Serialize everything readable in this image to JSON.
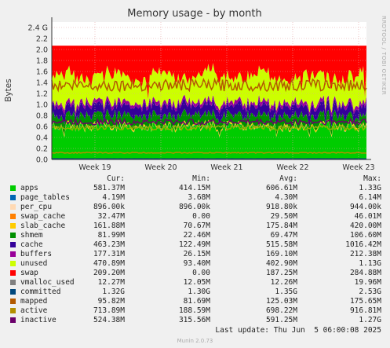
{
  "chart_data": {
    "type": "area",
    "title": "Memory usage - by month",
    "ylabel": "Bytes",
    "side_label": "RRDTOOL / TOBI OETIKER",
    "x_ticks": [
      "Week 19",
      "Week 20",
      "Week 21",
      "Week 22",
      "Week 23"
    ],
    "y_ticks": [
      "0.0",
      "0.2",
      "0.4",
      "0.6",
      "0.8",
      "1.0",
      "1.2",
      "1.4",
      "1.6",
      "1.8",
      "2.0",
      "2.2",
      "2.4 G"
    ],
    "ylim": [
      0,
      2.5
    ],
    "grid": true,
    "legend_header": [
      "Cur:",
      "Min:",
      "Avg:",
      "Max:"
    ],
    "series": [
      {
        "name": "apps",
        "color": "#00cc00",
        "cur": "581.37M",
        "min": "414.15M",
        "avg": "606.61M",
        "max": "1.33G"
      },
      {
        "name": "page_tables",
        "color": "#0066b3",
        "cur": "4.19M",
        "min": "3.68M",
        "avg": "4.30M",
        "max": "6.14M"
      },
      {
        "name": "per_cpu",
        "color": "#ff8000",
        "cur": "896.00k",
        "min": "896.00k",
        "avg": "918.80k",
        "max": "944.00k"
      },
      {
        "name": "swap_cache",
        "color": "#ffcc00",
        "cur": "32.47M",
        "min": "0.00",
        "avg": "29.50M",
        "max": "46.01M"
      },
      {
        "name": "slab_cache",
        "color": "#330099",
        "cur": "161.88M",
        "min": "70.67M",
        "avg": "175.84M",
        "max": "420.00M"
      },
      {
        "name": "shmem",
        "color": "#990099",
        "cur": "81.99M",
        "min": "22.46M",
        "avg": "69.47M",
        "max": "106.60M"
      },
      {
        "name": "cache",
        "color": "#ccff00",
        "cur": "463.23M",
        "min": "122.49M",
        "avg": "515.58M",
        "max": "1016.42M"
      },
      {
        "name": "buffers",
        "color": "#ff0000",
        "cur": "177.31M",
        "min": "26.15M",
        "avg": "169.10M",
        "max": "212.38M"
      },
      {
        "name": "unused",
        "color": "#808080",
        "cur": "470.89M",
        "min": "93.40M",
        "avg": "402.90M",
        "max": "1.13G"
      },
      {
        "name": "swap",
        "color": "#008f00",
        "cur": "209.20M",
        "min": "0.00",
        "avg": "187.25M",
        "max": "284.88M"
      },
      {
        "name": "vmalloc_used",
        "color": "#00487d",
        "cur": "12.27M",
        "min": "12.05M",
        "avg": "12.26M",
        "max": "19.96M"
      },
      {
        "name": "committed",
        "color": "#b35a00",
        "cur": "1.32G",
        "min": "1.30G",
        "avg": "1.35G",
        "max": "2.53G"
      },
      {
        "name": "mapped",
        "color": "#b38f00",
        "cur": "95.82M",
        "min": "81.69M",
        "avg": "125.03M",
        "max": "175.65M"
      },
      {
        "name": "active",
        "color": "#6b006b",
        "cur": "713.89M",
        "min": "188.59M",
        "avg": "698.22M",
        "max": "916.81M"
      },
      {
        "name": "inactive",
        "color": "#8fb300",
        "cur": "524.38M",
        "min": "315.56M",
        "avg": "591.25M",
        "max": "1.27G"
      }
    ]
  },
  "legend_colors": [
    "#00cc00",
    "#0066b3",
    "#ffd9b3",
    "#ff8000",
    "#ffcc00",
    "#008f00",
    "#330099",
    "#990099",
    "#ccff00",
    "#ff0000",
    "#808080",
    "#00487d",
    "#b35a00",
    "#b38f00",
    "#6b006b"
  ],
  "last_update": "Last update: Thu Jun  5 06:00:08 2025",
  "footer": "Munin 2.0.73"
}
